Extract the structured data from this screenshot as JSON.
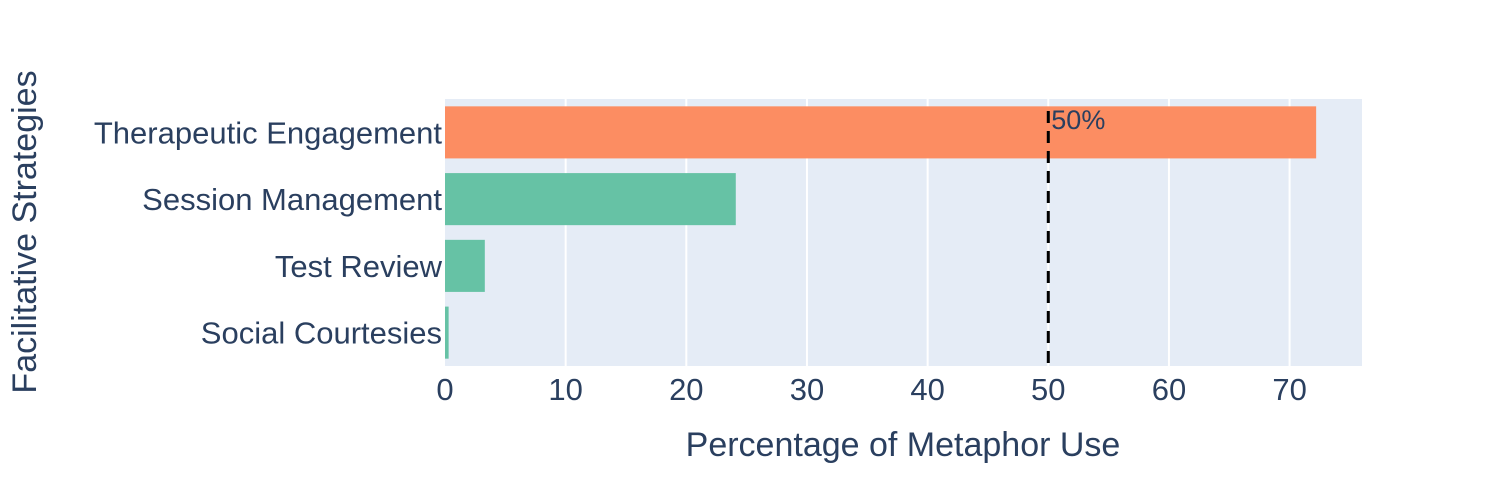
{
  "chart_data": {
    "type": "bar",
    "orientation": "horizontal",
    "categories": [
      "Therapeutic Engagement",
      "Session Management",
      "Test Review",
      "Social Courtesies"
    ],
    "values": [
      72.2,
      24.1,
      3.3,
      0.3
    ],
    "bar_colors": [
      "#fc8d62",
      "#66c2a5",
      "#66c2a5",
      "#66c2a5"
    ],
    "xlabel": "Percentage of Metaphor Use",
    "ylabel": "Facilitative Strategies",
    "xlim": [
      0,
      76
    ],
    "xticks": [
      0,
      10,
      20,
      30,
      40,
      50,
      60,
      70
    ],
    "grid": true,
    "reference_line": {
      "x": 50,
      "label": "50%",
      "style": "dashed",
      "color": "#000000"
    },
    "plot_bg": "#e5ecf6",
    "text_color": "#2a3f5f"
  }
}
